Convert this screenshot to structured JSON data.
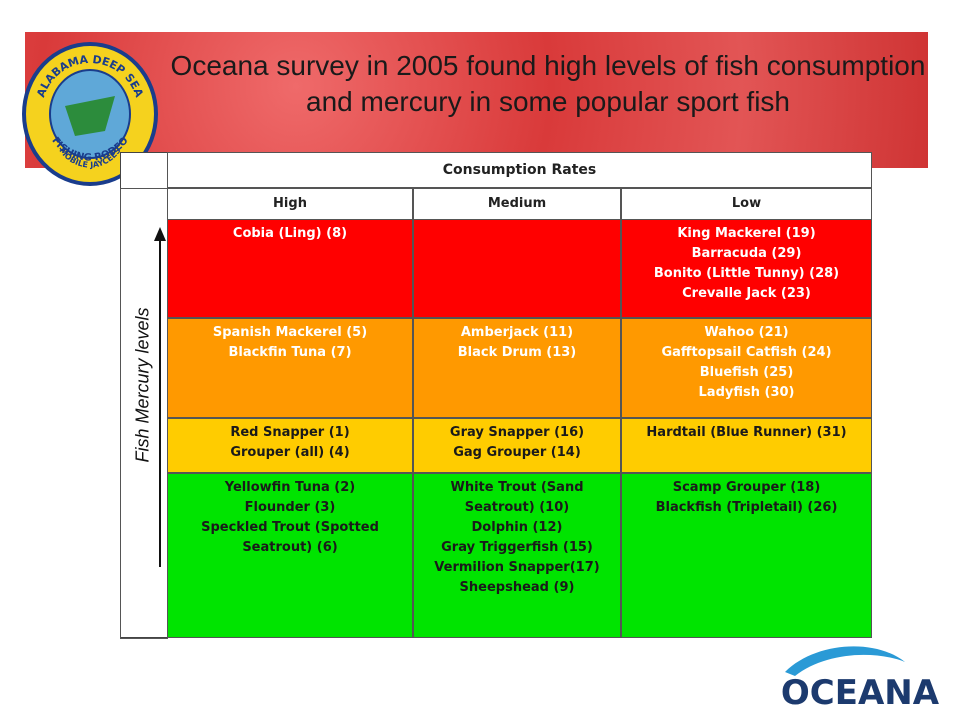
{
  "logo": {
    "lines": [
      "ALABAMA DEEP SEA",
      "FISHING RODEO",
      "MOBILE JAYCEES"
    ]
  },
  "header": {
    "title": "Oceana survey in 2005 found high levels of fish consumption and mercury in some popular sport fish"
  },
  "table": {
    "caption": "Consumption Rates",
    "row_axis_label": "Fish Mercury levels",
    "columns": [
      "High",
      "Medium",
      "Low"
    ],
    "rows": [
      {
        "color": "#ff0000",
        "text_color": "#ffffff",
        "cells": [
          [
            "Cobia (Ling) (8)"
          ],
          [],
          [
            "King Mackerel (19)",
            "Barracuda (29)",
            "Bonito (Little Tunny) (28)",
            "Crevalle Jack (23)"
          ]
        ]
      },
      {
        "color": "#ff9900",
        "text_color": "#ffffff",
        "cells": [
          [
            "Spanish Mackerel (5)",
            "Blackfin Tuna (7)"
          ],
          [
            "Amberjack (11)",
            "Black Drum (13)"
          ],
          [
            "Wahoo (21)",
            "Gafftopsail Catfish (24)",
            "Bluefish (25)",
            "Ladyfish (30)"
          ]
        ]
      },
      {
        "color": "#ffcc00",
        "text_color": "#1a1a1a",
        "cells": [
          [
            "Red Snapper (1)",
            "Grouper (all) (4)"
          ],
          [
            "Gray Snapper (16)",
            "Gag Grouper (14)"
          ],
          [
            "Hardtail (Blue Runner) (31)"
          ]
        ]
      },
      {
        "color": "#00e400",
        "text_color": "#1a1a1a",
        "cells": [
          [
            "Yellowfin Tuna (2)",
            "Flounder (3)",
            "Speckled Trout (Spotted Seatrout) (6)"
          ],
          [
            "White Trout (Sand Seatrout) (10)",
            "Dolphin (12)",
            "Gray Triggerfish (15)",
            "Vermilion Snapper(17)",
            "Sheepshead (9)"
          ],
          [
            "Scamp Grouper (18)",
            "Blackfish (Tripletail) (26)"
          ]
        ]
      }
    ]
  },
  "brand": "OCEANA"
}
